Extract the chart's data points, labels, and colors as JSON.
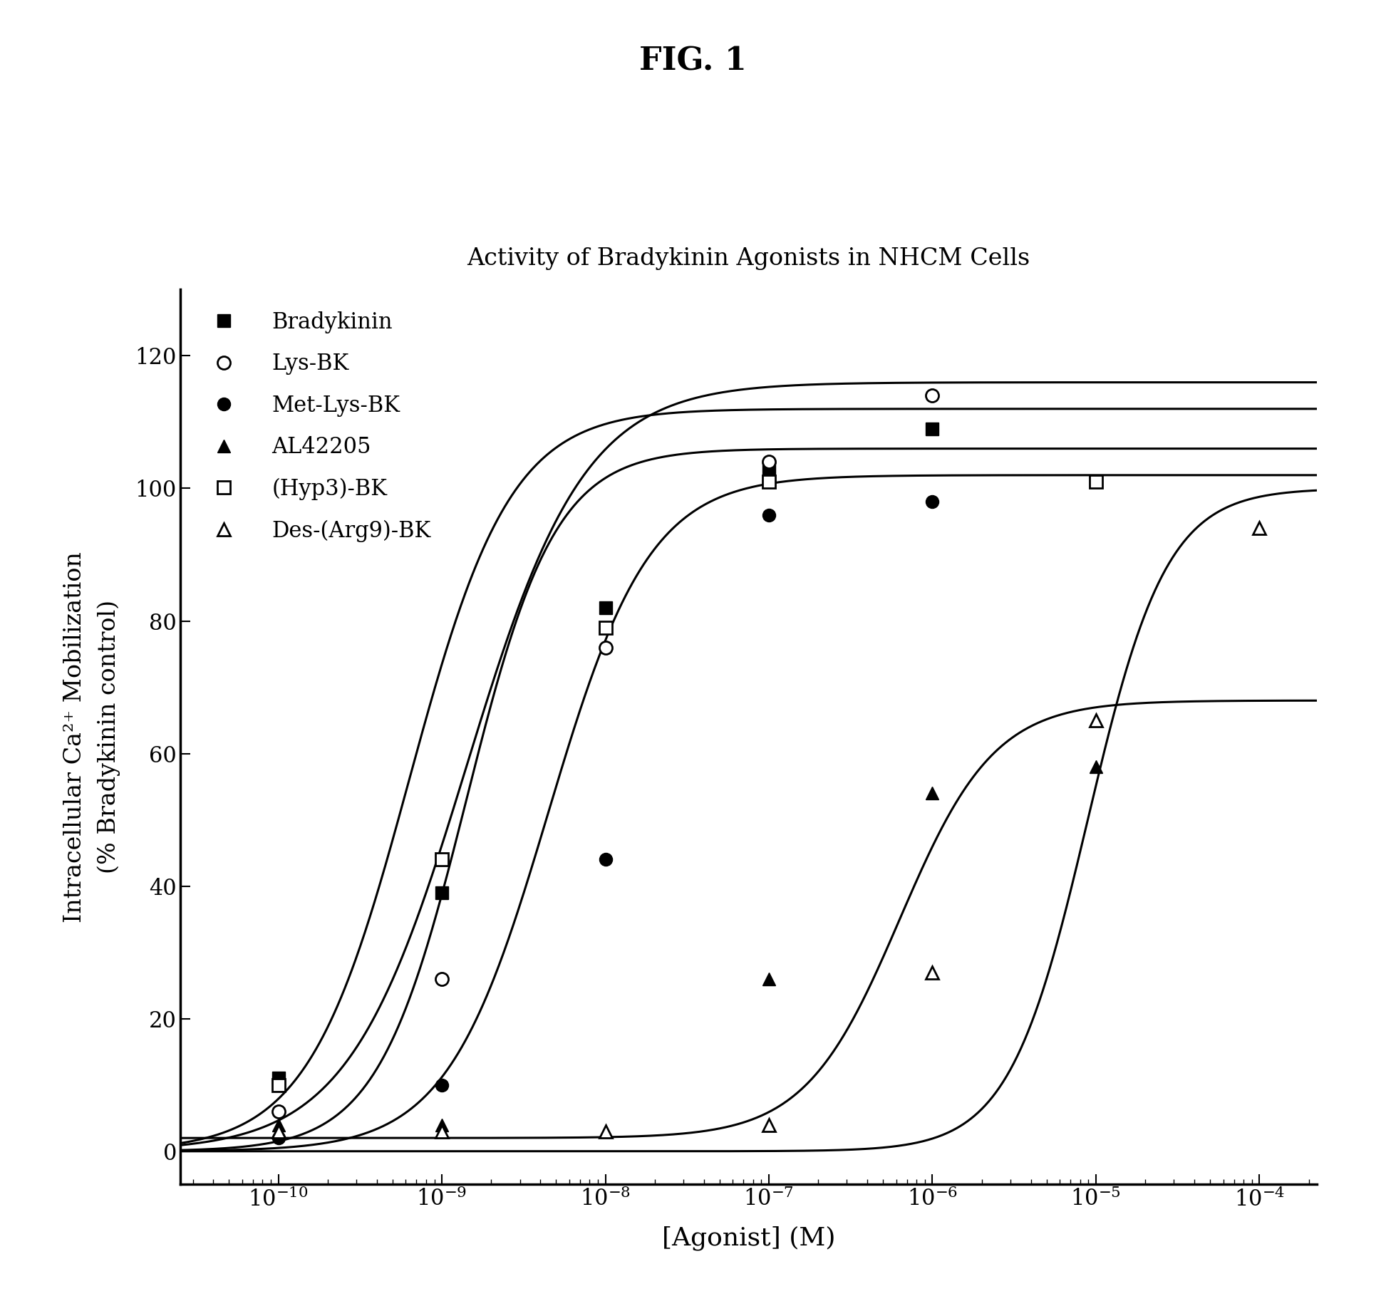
{
  "title_fig": "FIG. 1",
  "title_plot": "Activity of Bradykinin Agonists in NHCM Cells",
  "xlabel": "[Agonist] (M)",
  "ylabel": "Intracellular Ca²⁺ Mobilization\n(% Bradykinin control)",
  "ylim": [
    -5,
    130
  ],
  "yticks": [
    0,
    20,
    40,
    60,
    80,
    100,
    120
  ],
  "series": [
    {
      "name": "Bradykinin",
      "marker": "s",
      "filled": true,
      "color": "#000000",
      "data_x_log": [
        -10,
        -9,
        -8,
        -7,
        -6
      ],
      "data_y": [
        11,
        39,
        82,
        103,
        109
      ],
      "ec50_log": -9.2,
      "emax": 112,
      "emin": 0,
      "hill": 1.4
    },
    {
      "name": "Lys-BK",
      "marker": "o",
      "filled": false,
      "color": "#000000",
      "data_x_log": [
        -10,
        -9,
        -8,
        -7,
        -6
      ],
      "data_y": [
        6,
        26,
        76,
        104,
        114
      ],
      "ec50_log": -8.85,
      "emax": 116,
      "emin": 0,
      "hill": 1.2
    },
    {
      "name": "Met-Lys-BK",
      "marker": "o",
      "filled": true,
      "color": "#000000",
      "data_x_log": [
        -10,
        -9,
        -8,
        -7,
        -6
      ],
      "data_y": [
        2,
        10,
        44,
        96,
        98
      ],
      "ec50_log": -8.35,
      "emax": 102,
      "emin": 0,
      "hill": 1.4
    },
    {
      "name": "AL42205",
      "marker": "^",
      "filled": true,
      "color": "#000000",
      "data_x_log": [
        -10,
        -9,
        -7,
        -6,
        -5
      ],
      "data_y": [
        4,
        4,
        26,
        54,
        58
      ],
      "ec50_log": -6.2,
      "emax": 68,
      "emin": 2,
      "hill": 1.5
    },
    {
      "name": "(Hyp3)-BK",
      "marker": "s",
      "filled": false,
      "color": "#000000",
      "data_x_log": [
        -10,
        -9,
        -8,
        -7,
        -5
      ],
      "data_y": [
        10,
        44,
        79,
        101,
        101
      ],
      "ec50_log": -8.85,
      "emax": 106,
      "emin": 0,
      "hill": 1.6
    },
    {
      "name": "Des-(Arg9)-BK",
      "marker": "^",
      "filled": false,
      "color": "#000000",
      "data_x_log": [
        -10,
        -9,
        -8,
        -7,
        -6,
        -5,
        -4
      ],
      "data_y": [
        3,
        3,
        3,
        4,
        27,
        65,
        94
      ],
      "ec50_log": -5.05,
      "emax": 100,
      "emin": 0,
      "hill": 1.8
    }
  ]
}
